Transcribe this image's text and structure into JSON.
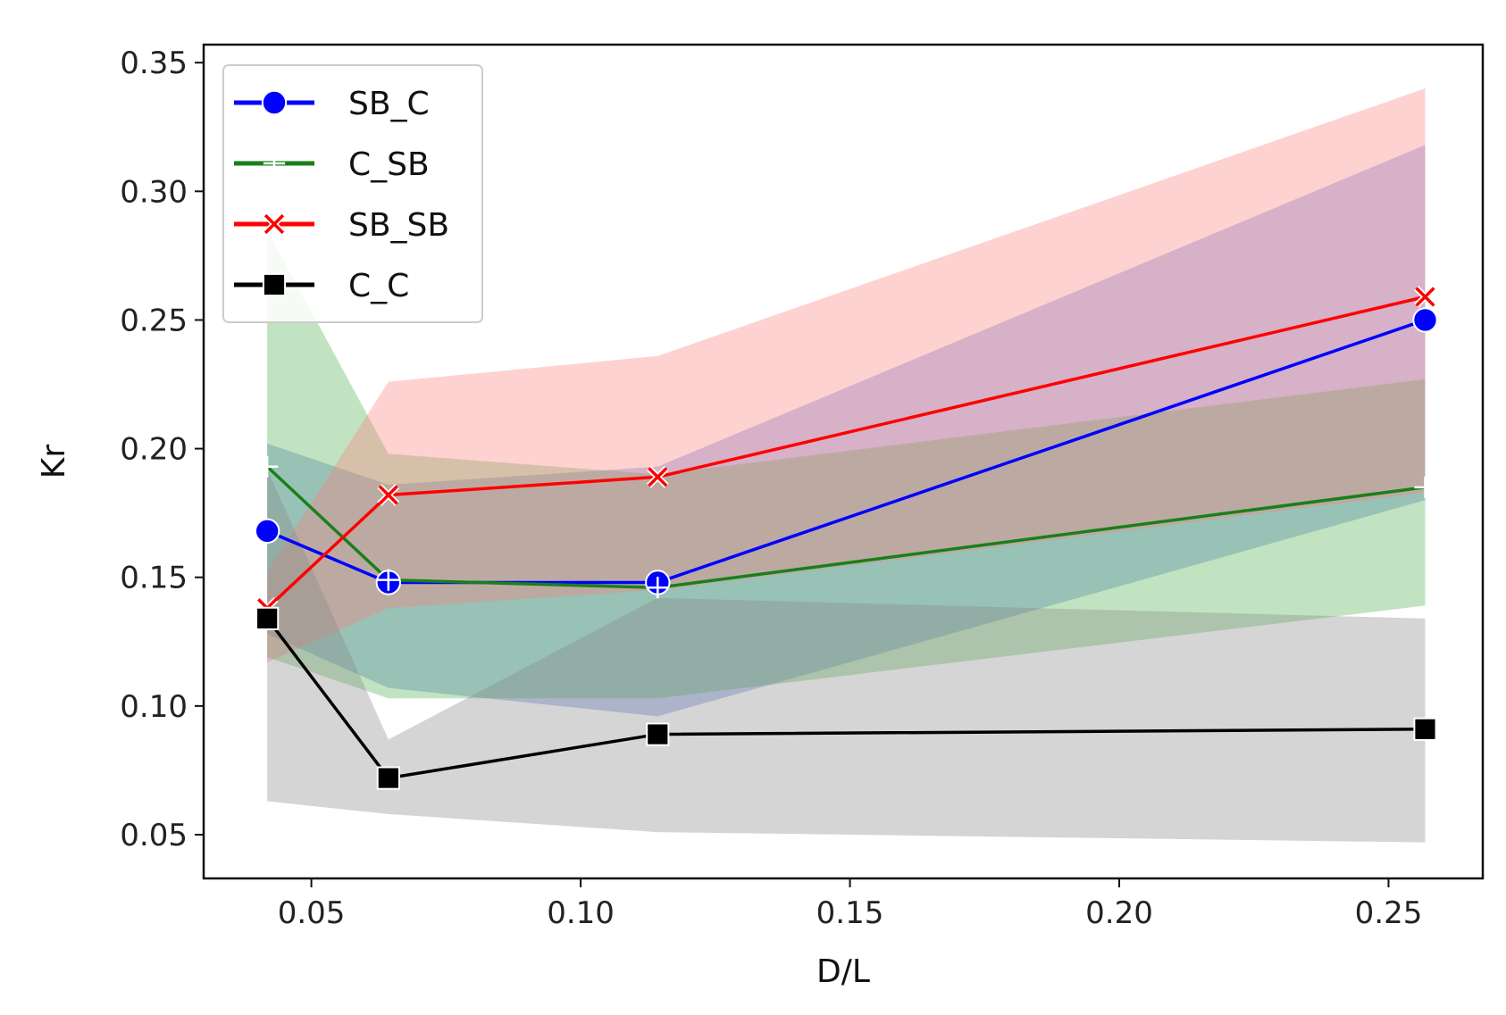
{
  "chart_data": {
    "type": "line",
    "xlabel": "D/L",
    "ylabel": "Kr",
    "xlim": [
      0.03,
      0.2675
    ],
    "ylim": [
      0.033,
      0.357
    ],
    "xticks": [
      0.05,
      0.1,
      0.15,
      0.2,
      0.25
    ],
    "xtick_labels": [
      "0.05",
      "0.10",
      "0.15",
      "0.20",
      "0.25"
    ],
    "yticks": [
      0.05,
      0.1,
      0.15,
      0.2,
      0.25,
      0.3,
      0.35
    ],
    "ytick_labels": [
      "0.05",
      "0.10",
      "0.15",
      "0.20",
      "0.25",
      "0.30",
      "0.35"
    ],
    "grid": false,
    "legend_position": "top-left",
    "x": [
      0.0418,
      0.0643,
      0.1143,
      0.2568
    ],
    "series": [
      {
        "name": "SB_C",
        "color": "#0000ff",
        "band_color": "#4a6fd0",
        "marker": "circle",
        "values": [
          0.168,
          0.148,
          0.148,
          0.25
        ],
        "band_upper": [
          0.202,
          0.186,
          0.193,
          0.318
        ],
        "band_lower": [
          0.128,
          0.107,
          0.096,
          0.18
        ]
      },
      {
        "name": "C_SB",
        "color": "#1a7f1a",
        "band_color": "#4caf4c",
        "marker": "plus",
        "values": [
          0.193,
          0.149,
          0.146,
          0.185
        ],
        "band_upper": [
          0.285,
          0.198,
          0.19,
          0.227
        ],
        "band_lower": [
          0.119,
          0.103,
          0.103,
          0.139
        ]
      },
      {
        "name": "SB_SB",
        "color": "#ff0000",
        "band_color": "#ff7f7f",
        "marker": "x",
        "values": [
          0.138,
          0.182,
          0.189,
          0.259
        ],
        "band_upper": [
          0.152,
          0.226,
          0.236,
          0.34
        ],
        "band_lower": [
          0.117,
          0.138,
          0.145,
          0.183
        ]
      },
      {
        "name": "C_C",
        "color": "#000000",
        "band_color": "#888888",
        "marker": "square",
        "values": [
          0.134,
          0.072,
          0.089,
          0.091
        ],
        "band_upper": [
          0.192,
          0.087,
          0.142,
          0.134
        ],
        "band_lower": [
          0.063,
          0.058,
          0.051,
          0.047
        ]
      }
    ]
  }
}
